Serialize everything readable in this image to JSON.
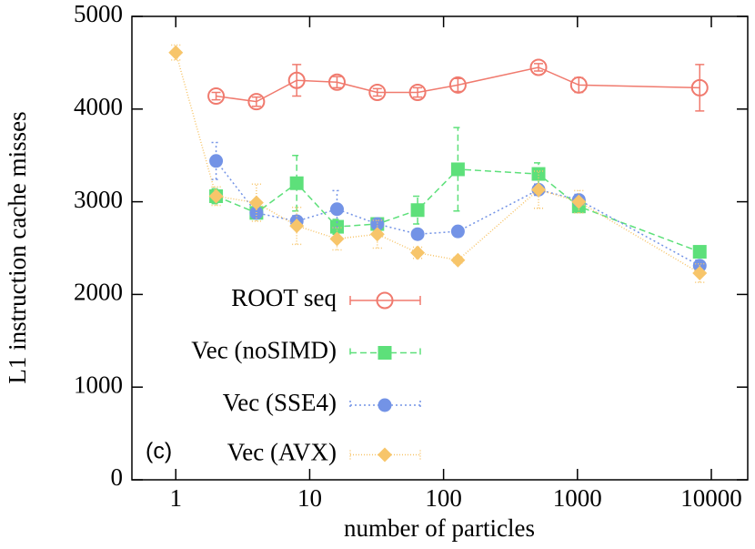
{
  "chart_data": {
    "type": "line",
    "x_label": "number of particles",
    "y_label": "L1 instruction cache misses",
    "annotation": "(c)",
    "x": [
      1,
      2,
      4,
      8,
      16,
      32,
      64,
      128,
      512,
      1024,
      8192
    ],
    "xlim": [
      0.47,
      18700
    ],
    "xscale": "log",
    "xticks": [
      1,
      10,
      100,
      1000,
      10000
    ],
    "ylim": [
      0,
      5000
    ],
    "yticks": [
      0,
      1000,
      2000,
      3000,
      4000,
      5000
    ],
    "series": [
      {
        "name": "ROOT seq",
        "color": "#f07a6e",
        "marker": "open-circle",
        "dash": "none",
        "values": [
          null,
          4140,
          4080,
          4310,
          4290,
          4180,
          4180,
          4260,
          4450,
          4260,
          4230
        ],
        "errors": [
          null,
          40,
          50,
          170,
          60,
          40,
          50,
          70,
          40,
          80,
          250
        ]
      },
      {
        "name": "Vec (noSIMD)",
        "color": "#5de07a",
        "marker": "square",
        "dash": "7,4",
        "values": [
          null,
          3060,
          2880,
          3200,
          2730,
          2760,
          2910,
          3350,
          3300,
          2950,
          2460
        ],
        "errors": [
          null,
          80,
          40,
          300,
          80,
          50,
          150,
          450,
          120,
          60,
          50
        ]
      },
      {
        "name": "Vec (SSE4)",
        "color": "#7393e6",
        "marker": "circle",
        "dash": "2,3",
        "values": [
          null,
          3440,
          2880,
          2790,
          2920,
          2760,
          2650,
          2680,
          3130,
          3020,
          2310
        ],
        "errors": [
          null,
          200,
          50,
          60,
          200,
          50,
          40,
          40,
          60,
          60,
          60
        ]
      },
      {
        "name": "Vec (AVX)",
        "color": "#f7c56a",
        "marker": "diamond",
        "dash": "1,2",
        "values": [
          4610,
          3060,
          2990,
          2740,
          2600,
          2650,
          2450,
          2370,
          3130,
          3000,
          2230
        ],
        "errors": [
          80,
          100,
          200,
          200,
          120,
          150,
          60,
          30,
          200,
          120,
          100
        ]
      }
    ]
  }
}
